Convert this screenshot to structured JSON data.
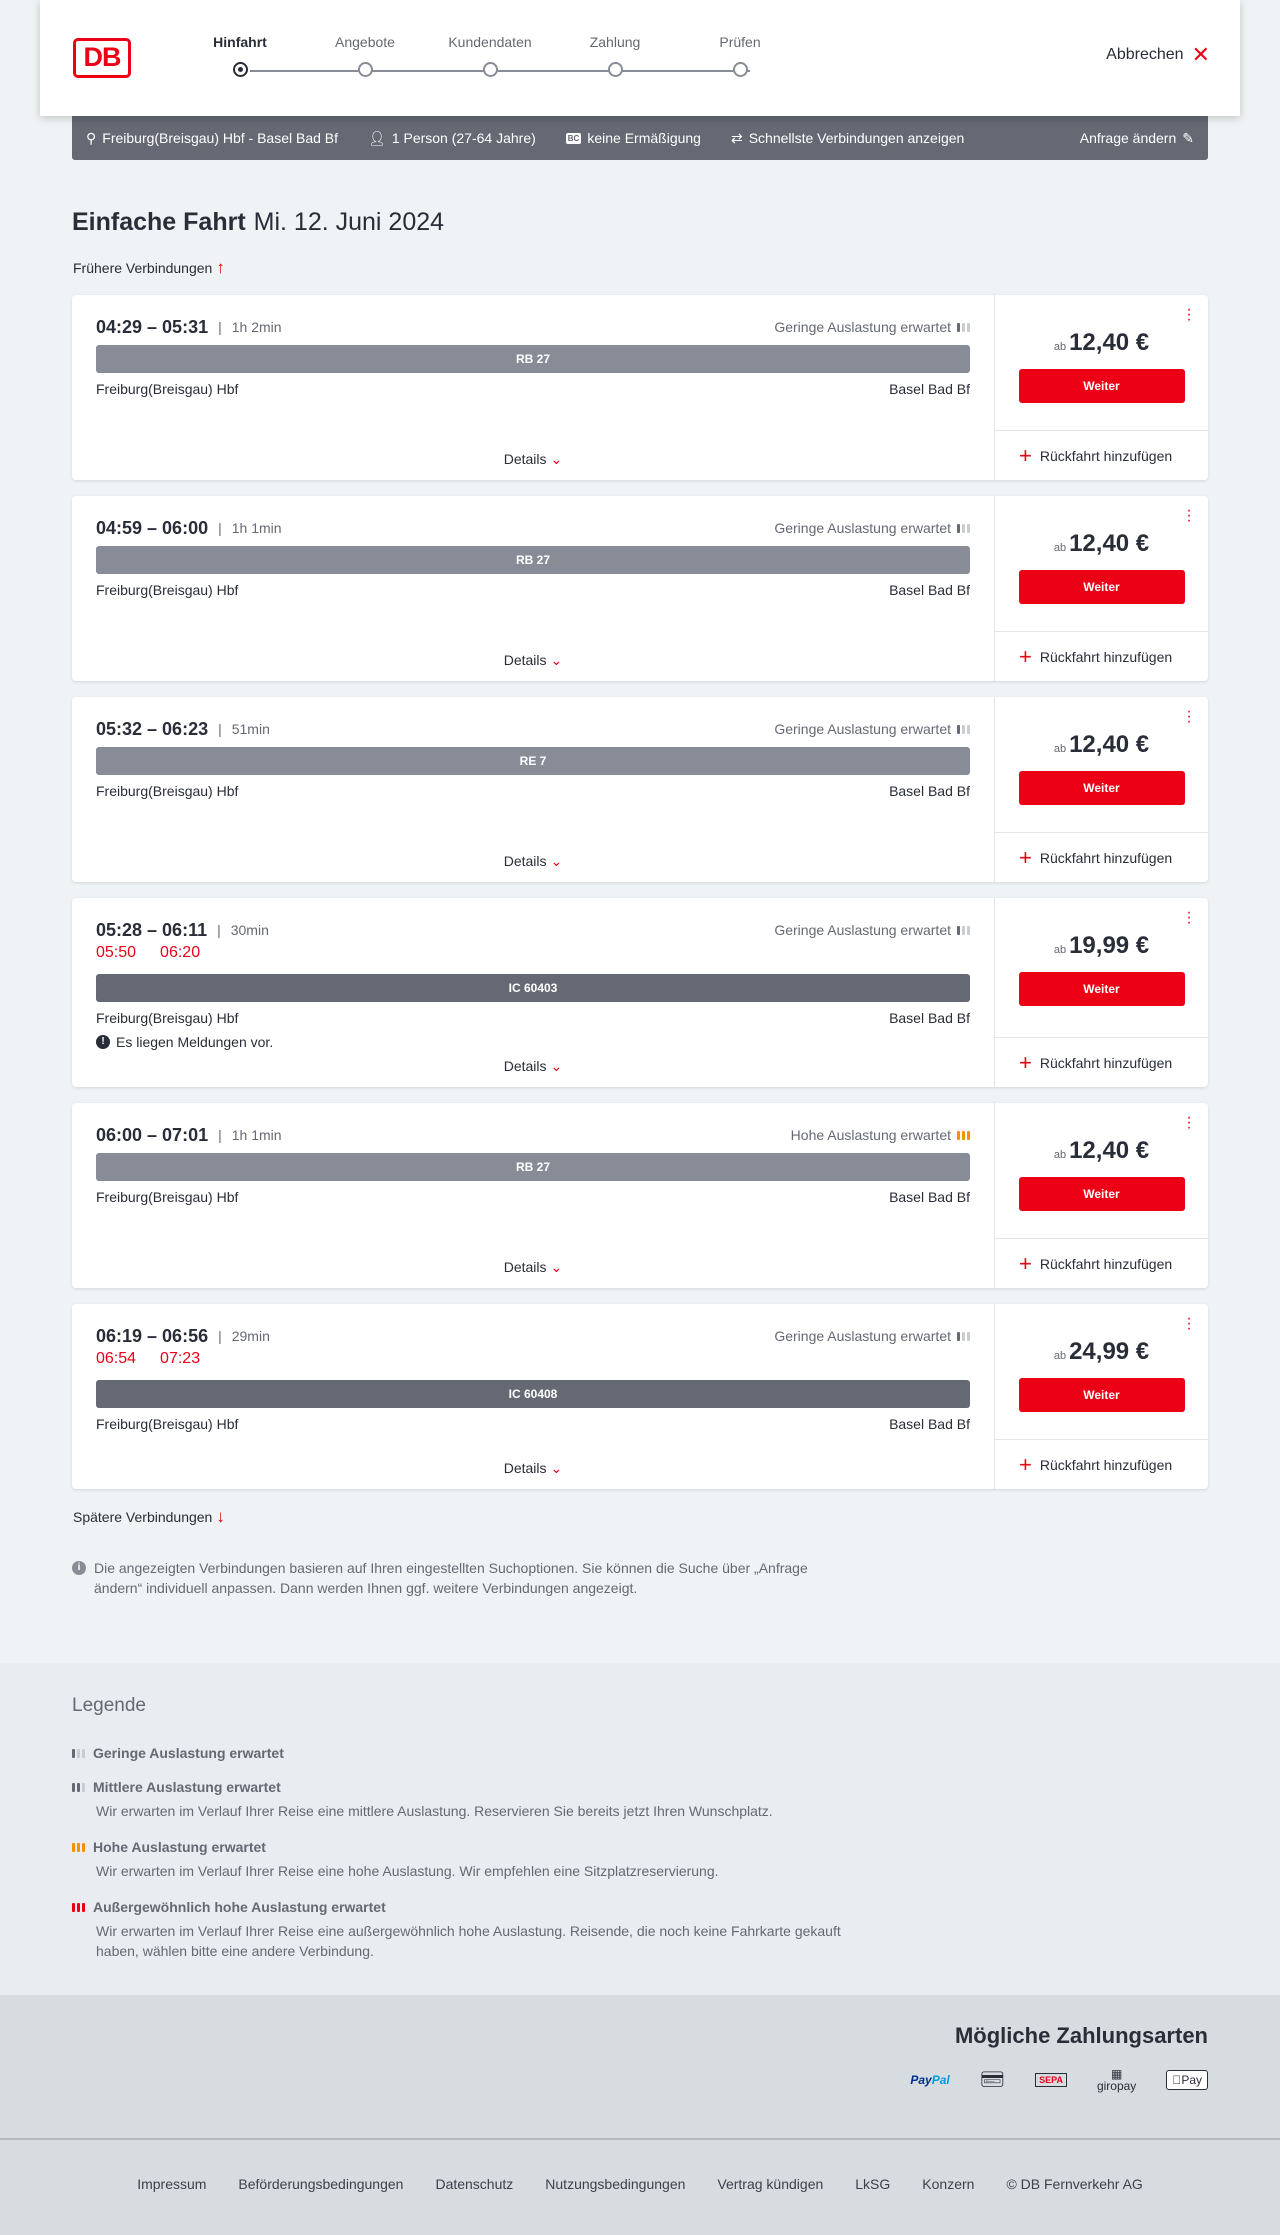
{
  "header": {
    "logo": "DB",
    "steps": [
      {
        "label": "Hinfahrt",
        "active": true
      },
      {
        "label": "Angebote",
        "active": false
      },
      {
        "label": "Kundendaten",
        "active": false
      },
      {
        "label": "Zahlung",
        "active": false
      },
      {
        "label": "Prüfen",
        "active": false
      }
    ],
    "cancel_label": "Abbrechen"
  },
  "summary": {
    "route": "Freiburg(Breisgau) Hbf - Basel Bad Bf",
    "passengers": "1 Person (27-64 Jahre)",
    "discount_badge": "BC",
    "discount": "keine Ermäßigung",
    "option": "Schnellste Verbindungen anzeigen",
    "edit_label": "Anfrage ändern"
  },
  "page": {
    "title": "Einfache Fahrt",
    "date": "Mi. 12. Juni 2024",
    "earlier": "Frühere Verbindungen",
    "later": "Spätere Verbindungen",
    "info": "Die angezeigten Verbindungen basieren auf Ihren eingestellten Suchoptionen. Sie können die Suche über „Anfrage ändern“ individuell anpassen. Dann werden Ihnen ggf. weitere Verbindungen angezeigt."
  },
  "labels": {
    "details": "Details",
    "weiter": "Weiter",
    "return": "Rückfahrt hinzufügen",
    "ab": "ab"
  },
  "connections": [
    {
      "times": "04:29 – 05:31",
      "duration": "1h 2min",
      "load": "Geringe Auslastung erwartet",
      "load_level": "low",
      "train": "RB 27",
      "train_type": "regional",
      "from": "Freiburg(Breisgau) Hbf",
      "to": "Basel Bad Bf",
      "price": "12,40 €"
    },
    {
      "times": "04:59 – 06:00",
      "duration": "1h 1min",
      "load": "Geringe Auslastung erwartet",
      "load_level": "low",
      "train": "RB 27",
      "train_type": "regional",
      "from": "Freiburg(Breisgau) Hbf",
      "to": "Basel Bad Bf",
      "price": "12,40 €"
    },
    {
      "times": "05:32 – 06:23",
      "duration": "51min",
      "load": "Geringe Auslastung erwartet",
      "load_level": "low",
      "train": "RE 7",
      "train_type": "regional",
      "from": "Freiburg(Breisgau) Hbf",
      "to": "Basel Bad Bf",
      "price": "12,40 €"
    },
    {
      "times": "05:28 – 06:11",
      "duration": "30min",
      "delay_dep": "05:50",
      "delay_arr": "06:20",
      "load": "Geringe Auslastung erwartet",
      "load_level": "low",
      "train": "IC 60403",
      "train_type": "ic",
      "from": "Freiburg(Breisgau) Hbf",
      "to": "Basel Bad Bf",
      "message": "Es liegen Meldungen vor.",
      "price": "19,99 €"
    },
    {
      "times": "06:00 – 07:01",
      "duration": "1h 1min",
      "load": "Hohe Auslastung erwartet",
      "load_level": "high",
      "train": "RB 27",
      "train_type": "regional",
      "from": "Freiburg(Breisgau) Hbf",
      "to": "Basel Bad Bf",
      "price": "12,40 €"
    },
    {
      "times": "06:19 – 06:56",
      "duration": "29min",
      "delay_dep": "06:54",
      "delay_arr": "07:23",
      "load": "Geringe Auslastung erwartet",
      "load_level": "low",
      "train": "IC 60408",
      "train_type": "ic",
      "from": "Freiburg(Breisgau) Hbf",
      "to": "Basel Bad Bf",
      "price": "24,99 €"
    }
  ],
  "legend": {
    "title": "Legende",
    "items": [
      {
        "level": "low",
        "title": "Geringe Auslastung erwartet",
        "text": ""
      },
      {
        "level": "mid",
        "title": "Mittlere Auslastung erwartet",
        "text": "Wir erwarten im Verlauf Ihrer Reise eine mittlere Auslastung. Reservieren Sie bereits jetzt Ihren Wunschplatz."
      },
      {
        "level": "high",
        "title": "Hohe Auslastung erwartet",
        "text": "Wir erwarten im Verlauf Ihrer Reise eine hohe Auslastung. Wir empfehlen eine Sitzplatzreservierung."
      },
      {
        "level": "xhigh",
        "title": "Außergewöhnlich hohe Auslastung erwartet",
        "text": "Wir erwarten im Verlauf Ihrer Reise eine außergewöhnlich hohe Auslastung. Reisende, die noch keine Fahrkarte gekauft haben, wählen bitte eine andere Verbindung."
      }
    ]
  },
  "payment": {
    "title": "Mögliche Zahlungsarten",
    "methods": [
      "PayPal",
      "Kreditkarte",
      "SEPA",
      "giropay",
      "Pay"
    ]
  },
  "footer": {
    "links": [
      "Impressum",
      "Beförderungsbedingungen",
      "Datenschutz",
      "Nutzungsbedingungen",
      "Vertrag kündigen",
      "LkSG",
      "Konzern",
      "© DB Fernverkehr AG"
    ]
  },
  "colors": {
    "accent": "#ec0016",
    "summary_bg": "#646973",
    "regional_bar": "#878c96",
    "ic_bar": "#646973",
    "high_load": "#f39200"
  }
}
